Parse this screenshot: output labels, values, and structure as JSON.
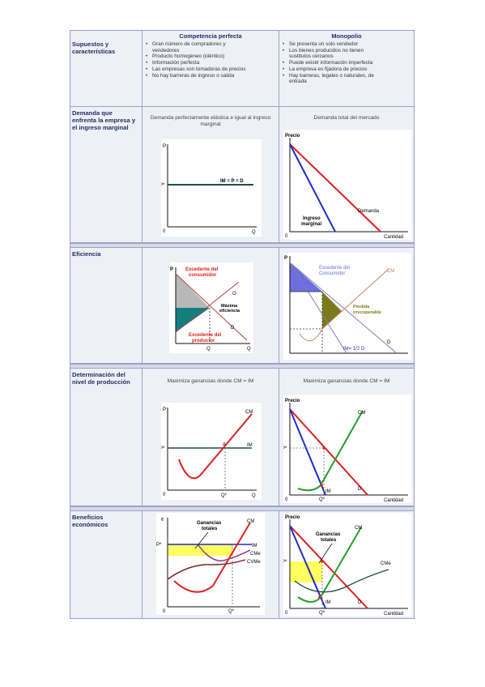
{
  "header": {
    "competitive": "Competencia perfecta",
    "monopoly": "Monopolio"
  },
  "sections": {
    "assumptions": {
      "label": "Supuestos y\ncaracterísticas",
      "competitive_items": [
        "Gran número de compradores y",
        "vendedores",
        "Producto homogéneo (idéntico)",
        "Información perfecta",
        "Las empresas son tomadoras de precios",
        "No hay barreras de ingreso o salida"
      ],
      "monopoly_items": [
        "Se presenta un solo vendedor",
        "Los bienes producidos no tienen",
        "sustitutos cercanos",
        "Puede existir información imperfecta",
        "La empresa es fijadora de precios",
        "Hay barreras, legales o naturales, de",
        "entrada"
      ]
    },
    "demand": {
      "label": "Demanda que\nenfrenta la empresa y\nel ingreso marginal",
      "competitive_caption": "Demanda perfectamente elástica e igual al ingreso marginal",
      "monopoly_caption": "Demanda total del mercado",
      "comp_graph": {
        "p": "P",
        "pstar": "P*",
        "zero": "0",
        "q": "Q",
        "line": "IM = P = D"
      },
      "mono_graph": {
        "precio": "Precio",
        "zero": "0",
        "cantidad": "Cantidad",
        "demanda": "Demanda",
        "ingreso": "Ingreso",
        "marginal": "marginal"
      }
    },
    "efficiency": {
      "label": "Eficiencia",
      "comp_graph": {
        "p": "P",
        "cons1": "Excedente del",
        "cons2": "consumidor",
        "o": "O",
        "max1": "Máxima",
        "max2": "eficiencia",
        "d": "D",
        "prod1": "Excedente del",
        "prod2": "productor",
        "q": "Q",
        "q2": "Q"
      },
      "mono_graph": {
        "p": "P",
        "cons1": "Excedente del",
        "cons2": "Consumidor",
        "cm": "CM",
        "loss1": "Pérdida",
        "loss2": "irrecuperable",
        "im": "IM= 1/2 D",
        "d": "D"
      }
    },
    "production": {
      "label": "Determinación del\nnivel de producción",
      "competitive_caption": "Maximiza ganancias donde CM = IM",
      "monopoly_caption": "Maximiza ganancias donde CM = IM",
      "comp_graph": {
        "p": "P",
        "pstar": "P*",
        "zero": "0",
        "q": "Q",
        "qstar": "Q*",
        "cm": "CM",
        "a": "A",
        "im": "IM"
      },
      "mono_graph": {
        "precio": "Precio",
        "pstar": "P*",
        "zero": "0",
        "qstar": "Q*",
        "cantidad": "Cantidad",
        "cm": "CM",
        "im": "IM",
        "d": "D"
      }
    },
    "profits": {
      "label": "Beneficios\neconómicos",
      "comp_graph": {
        "c": "¢",
        "pstar": "P*",
        "g1": "Ganancias",
        "g2": "totales",
        "cm": "CM",
        "im": "IM",
        "cme": "CMe",
        "cvme": "CVMe",
        "zero": "0",
        "qstar": "Q*"
      },
      "mono_graph": {
        "precio": "Precio",
        "pstar": "P*",
        "g1": "Ganancias",
        "g2": "totales",
        "cm": "CM",
        "cme": "CMe",
        "im": "IM",
        "d": "D",
        "zero": "0",
        "qstar": "Q*",
        "cantidad": "Cantidad"
      }
    }
  },
  "colors": {
    "label_text": "#1f2b5c",
    "price_line": "#1f4e4e",
    "demand_red": "#e02020",
    "mr_blue": "#1f2cc4",
    "cost_green": "#22a02a",
    "avg_cost": "#3a2b6b",
    "surplus_gray": "#b8b8b8",
    "producer_teal": "#117f7f",
    "consumer_blue": "#6c6ee0",
    "loss_olive": "#7a7a1c",
    "profit_yellow": "#ffff60"
  }
}
